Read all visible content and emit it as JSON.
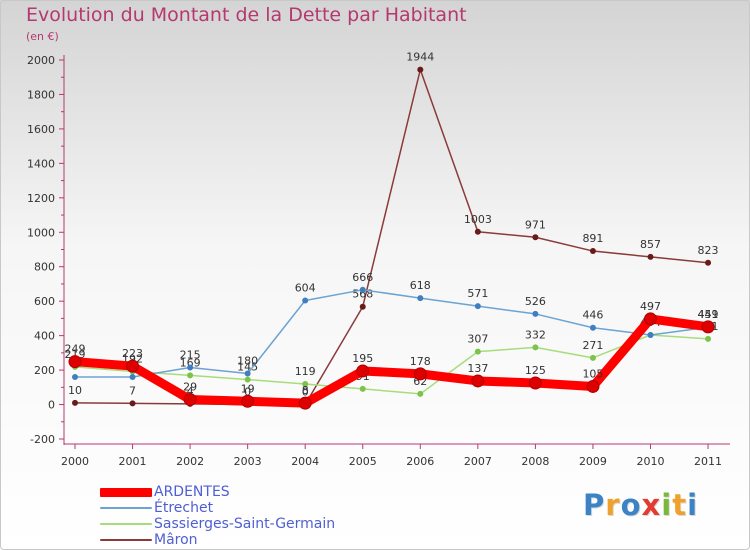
{
  "title": "Evolution du Montant de la Dette par Habitant",
  "subtitle": "(en €)",
  "logo": {
    "text": "Proxiti",
    "letters": [
      {
        "ch": "P",
        "color": "#3c83c6"
      },
      {
        "ch": "r",
        "color": "#f0a12b"
      },
      {
        "ch": "o",
        "color": "#3c83c6"
      },
      {
        "ch": "x",
        "color": "#e33b2f"
      },
      {
        "ch": "i",
        "color": "#79b83a"
      },
      {
        "ch": "t",
        "color": "#f0a12b"
      },
      {
        "ch": "i",
        "color": "#3c83c6"
      }
    ]
  },
  "chart_data": {
    "type": "line",
    "x": [
      "2000",
      "2001",
      "2002",
      "2003",
      "2004",
      "2005",
      "2006",
      "2007",
      "2008",
      "2009",
      "2010",
      "2011"
    ],
    "ylim": [
      -200,
      2000
    ],
    "yticks": [
      "2000",
      "1800",
      "1600",
      "1400",
      "1200",
      "1000",
      "800",
      "600",
      "400",
      "200",
      "0",
      "-200"
    ],
    "yticks_values": [
      2000,
      1800,
      1600,
      1400,
      1200,
      1000,
      800,
      600,
      400,
      200,
      0,
      -200
    ],
    "grid": false,
    "legend_position": "bottom-left",
    "series": [
      {
        "name": "Mâron",
        "color": "#8b3a3a",
        "marker": "#6b1a1a",
        "width": 1.5,
        "values": [
          10,
          7,
          4,
          0,
          0,
          568,
          1944,
          1003,
          971,
          891,
          857,
          823
        ],
        "labels": [
          "10",
          "7",
          "4",
          "0",
          "0",
          "568",
          "1944",
          "1003",
          "971",
          "891",
          "857",
          "823"
        ]
      },
      {
        "name": "Sassierges-Saint-Germain",
        "color": "#a6dd7c",
        "marker": "#7cc34a",
        "width": 1.5,
        "values": [
          219,
          192,
          169,
          145,
          119,
          91,
          62,
          307,
          332,
          271,
          404,
          381
        ],
        "labels": [
          "219",
          "192",
          "169",
          "145",
          "119",
          "91",
          "62",
          "307",
          "332",
          "271",
          "404",
          "381"
        ]
      },
      {
        "name": "Étrechet",
        "color": "#6ca3d2",
        "marker": "#3f7fc0",
        "width": 1.5,
        "values": [
          160,
          160,
          215,
          180,
          604,
          666,
          618,
          571,
          526,
          446,
          404,
          449
        ],
        "labels": [
          "",
          "",
          "215",
          "180",
          "604",
          "666",
          "618",
          "571",
          "526",
          "446",
          "",
          "449"
        ]
      },
      {
        "name": "ARDENTES",
        "color": "#ff0000",
        "marker": "#dd0000",
        "width": 9,
        "values": [
          249,
          223,
          29,
          19,
          8,
          195,
          178,
          137,
          125,
          105,
          497,
          451
        ],
        "labels": [
          "249",
          "223",
          "29",
          "19",
          "8",
          "195",
          "178",
          "137",
          "125",
          "105",
          "497",
          "451"
        ]
      }
    ]
  },
  "legend": [
    {
      "name": "ARDENTES",
      "color": "#ff0000",
      "thickness": 9
    },
    {
      "name": "Étrechet",
      "color": "#6ca3d2",
      "thickness": 2
    },
    {
      "name": "Sassierges-Saint-Germain",
      "color": "#a6dd7c",
      "thickness": 2
    },
    {
      "name": "Mâron",
      "color": "#8b3a3a",
      "thickness": 2
    }
  ]
}
